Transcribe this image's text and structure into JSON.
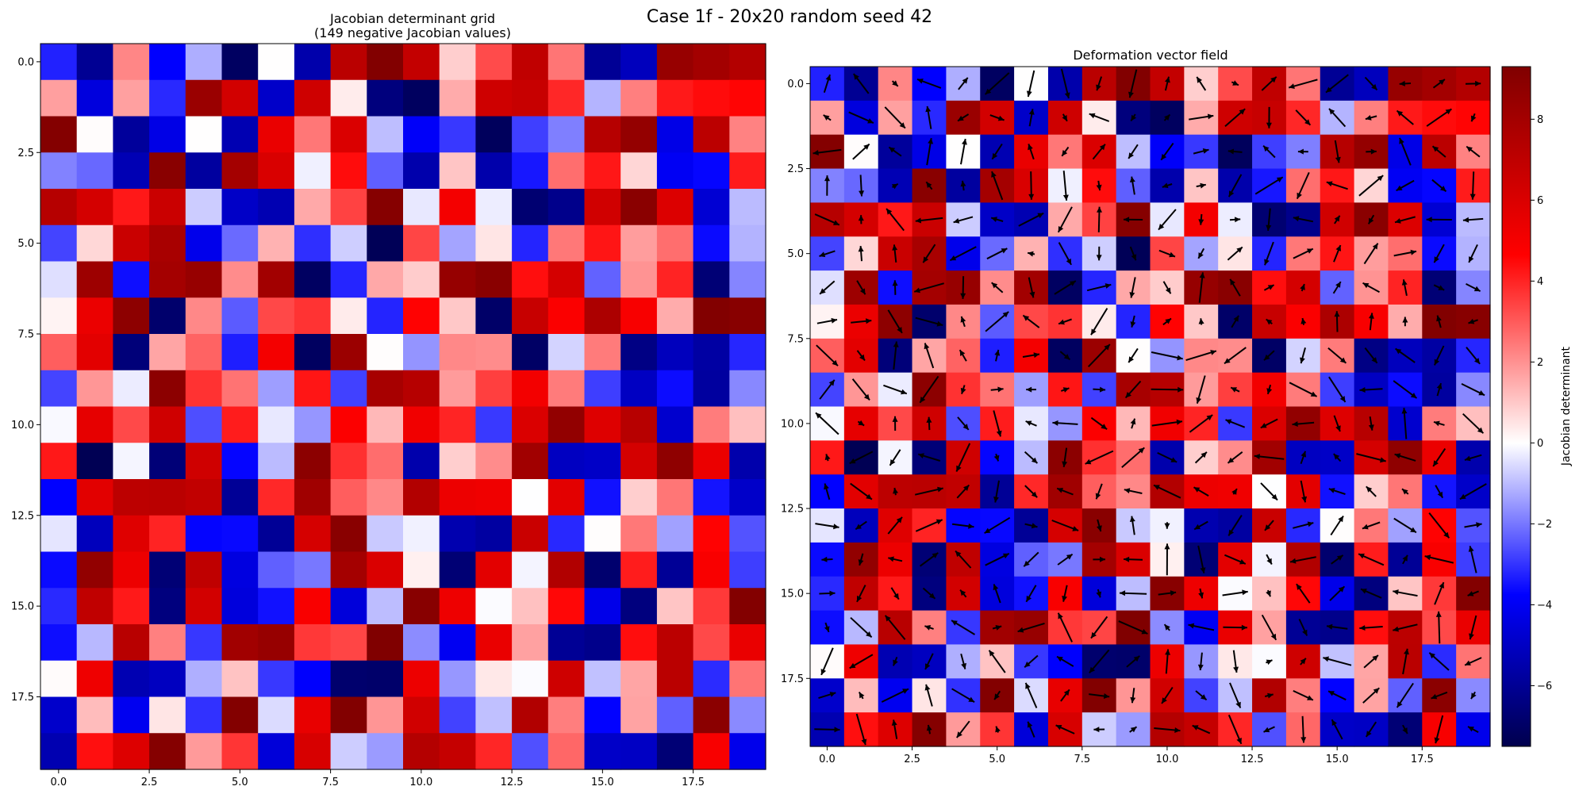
{
  "figure": {
    "suptitle": "Case 1f - 20x20 random seed 42"
  },
  "chart_data": [
    {
      "type": "heatmap",
      "title_line1": "Jacobian determinant grid",
      "title_line2": "(149 negative Jacobian values)",
      "xticks": [
        "0.0",
        "2.5",
        "5.0",
        "7.5",
        "10.0",
        "12.5",
        "15.0",
        "17.5"
      ],
      "yticks": [
        "0.0",
        "2.5",
        "5.0",
        "7.5",
        "10.0",
        "12.5",
        "15.0",
        "17.5"
      ],
      "grid_size": 20,
      "grid_seed": 42,
      "negative_count": 149
    },
    {
      "type": "heatmap",
      "title": "Deformation vector field",
      "overlay": "quiver",
      "xticks": [
        "0.0",
        "2.5",
        "5.0",
        "7.5",
        "10.0",
        "12.5",
        "15.0",
        "17.5"
      ],
      "yticks": [
        "0.0",
        "2.5",
        "5.0",
        "7.5",
        "10.0",
        "12.5",
        "15.0",
        "17.5"
      ]
    }
  ],
  "colorbar": {
    "label": "Jacobian determinant",
    "ticks": [
      "8",
      "6",
      "4",
      "2",
      "0",
      "−2",
      "−4",
      "−6"
    ],
    "tick_values": [
      8,
      6,
      4,
      2,
      0,
      -2,
      -4,
      -6
    ],
    "vmin": -7.5,
    "vmax": 9.3,
    "colormap": "seismic"
  }
}
